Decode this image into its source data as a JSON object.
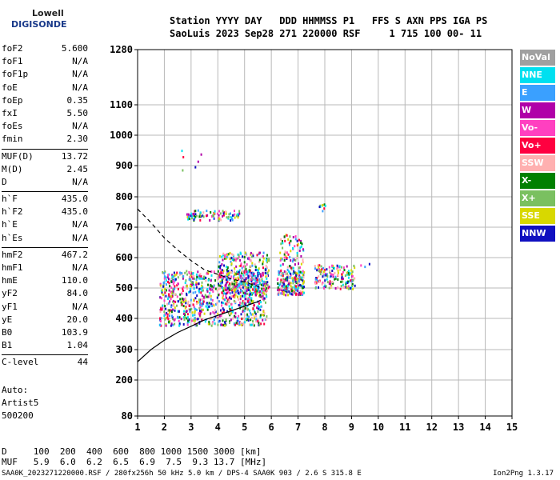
{
  "logo": {
    "line1": "Lowell",
    "line2": "DIGISONDE"
  },
  "header": {
    "line1": "Station YYYY DAY   DDD HHMMSS P1   FFS S AXN PPS IGA PS",
    "line2": "SaoLuis 2023 Sep28 271 220000 RSF     1 715 100 00- 11"
  },
  "params": [
    [
      {
        "name": "foF2",
        "value": "5.600"
      },
      {
        "name": "foF1",
        "value": "N/A"
      },
      {
        "name": "foF1p",
        "value": "N/A"
      },
      {
        "name": "foE",
        "value": "N/A"
      },
      {
        "name": "foEp",
        "value": "0.35"
      },
      {
        "name": "fxI",
        "value": "5.50"
      },
      {
        "name": "foEs",
        "value": "N/A"
      },
      {
        "name": "fmin",
        "value": "2.30"
      }
    ],
    [
      {
        "name": "MUF(D)",
        "value": "13.72"
      },
      {
        "name": "M(D)",
        "value": "2.45"
      },
      {
        "name": "D",
        "value": "N/A"
      }
    ],
    [
      {
        "name": "h`F",
        "value": "435.0"
      },
      {
        "name": "h`F2",
        "value": "435.0"
      },
      {
        "name": "h`E",
        "value": "N/A"
      },
      {
        "name": "h`Es",
        "value": "N/A"
      }
    ],
    [
      {
        "name": "hmF2",
        "value": "467.2"
      },
      {
        "name": "hmF1",
        "value": "N/A"
      },
      {
        "name": "hmE",
        "value": "110.0"
      },
      {
        "name": "yF2",
        "value": "84.0"
      },
      {
        "name": "yF1",
        "value": "N/A"
      },
      {
        "name": "yE",
        "value": "20.0"
      },
      {
        "name": "B0",
        "value": "103.9"
      },
      {
        "name": "B1",
        "value": "1.04"
      }
    ],
    [
      {
        "name": "C-level",
        "value": "44"
      }
    ]
  ],
  "auto": {
    "line1": "Auto:",
    "line2": "Artist5",
    "line3": "500200"
  },
  "legend": [
    {
      "label": "NoVal",
      "color": "#a0a0a0"
    },
    {
      "label": "NNE",
      "color": "#00e0f0"
    },
    {
      "label": "E",
      "color": "#3aa0ff"
    },
    {
      "label": "W",
      "color": "#b000a8"
    },
    {
      "label": "Vo-",
      "color": "#ff40c0"
    },
    {
      "label": "Vo+",
      "color": "#ff0040"
    },
    {
      "label": "SSW",
      "color": "#ffb0b0"
    },
    {
      "label": "X-",
      "color": "#008000"
    },
    {
      "label": "X+",
      "color": "#7ac060"
    },
    {
      "label": "SSE",
      "color": "#d8d800"
    },
    {
      "label": "NNW",
      "color": "#1010c0"
    }
  ],
  "dmuf": {
    "line1": "D     100  200  400  600  800 1000 1500 3000 [km]",
    "line2": "MUF   5.9  6.0  6.2  6.5  6.9  7.5  9.3 13.7 [MHz]"
  },
  "footer": {
    "left": "SAA0K_2023271220000.RSF / 280fx256h 50 kHz 5.0 km / DPS-4 SAA0K 903 / 2.6 S 315.8 E",
    "right": "Ion2Png 1.3.17"
  },
  "chart_data": {
    "type": "scatter",
    "x_ticks": [
      "1",
      "2",
      "3",
      "4",
      "5",
      "6",
      "7",
      "8",
      "9",
      "10",
      "11",
      "12",
      "13",
      "14",
      "15"
    ],
    "y_ticks": [
      "80",
      "200",
      "300",
      "400",
      "500",
      "600",
      "700",
      "800",
      "900",
      "1000",
      "1100",
      "1280"
    ],
    "xlim": [
      1,
      15
    ],
    "ylim": [
      80,
      1280
    ],
    "grid": true,
    "legend_position": "right",
    "curves": [
      {
        "style": "dashed",
        "x": [
          1.0,
          1.5,
          2.0,
          2.5,
          3.0,
          3.5,
          4.0,
          4.5,
          5.0,
          5.5,
          5.6
        ],
        "y": [
          760,
          715,
          665,
          625,
          590,
          560,
          545,
          530,
          520,
          505,
          500
        ]
      },
      {
        "style": "solid",
        "x": [
          1.0,
          1.5,
          2.0,
          2.5,
          3.0,
          3.5,
          4.0,
          4.5,
          5.0,
          5.5,
          5.6
        ],
        "y": [
          260,
          300,
          330,
          355,
          375,
          395,
          410,
          425,
          440,
          455,
          460
        ]
      }
    ],
    "clusters": [
      {
        "xr": [
          1.8,
          5.8
        ],
        "yr": [
          380,
          560
        ],
        "n": 900
      },
      {
        "xr": [
          4.0,
          5.9
        ],
        "yr": [
          480,
          620
        ],
        "n": 300
      },
      {
        "xr": [
          6.2,
          7.2
        ],
        "yr": [
          480,
          560
        ],
        "n": 220
      },
      {
        "xr": [
          6.3,
          7.2
        ],
        "yr": [
          560,
          680
        ],
        "n": 80
      },
      {
        "xr": [
          7.6,
          9.1
        ],
        "yr": [
          500,
          580
        ],
        "n": 160
      },
      {
        "xr": [
          2.8,
          4.8
        ],
        "yr": [
          725,
          760
        ],
        "n": 90
      },
      {
        "xr": [
          7.7,
          8.0
        ],
        "yr": [
          750,
          780
        ],
        "n": 10
      },
      {
        "xr": [
          2.6,
          3.4
        ],
        "yr": [
          880,
          980
        ],
        "n": 6
      },
      {
        "xr": [
          9.3,
          10.4
        ],
        "yr": [
          570,
          590
        ],
        "n": 3
      }
    ]
  }
}
